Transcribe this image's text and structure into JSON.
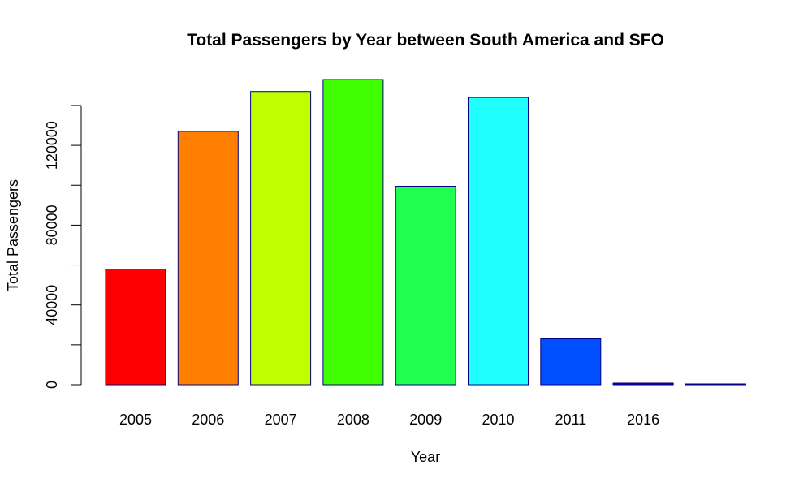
{
  "chart_data": {
    "type": "bar",
    "title": "Total  Passengers by Year between South America and SFO",
    "xlabel": "Year",
    "ylabel": "Total Passengers",
    "categories": [
      "2005",
      "2006",
      "2007",
      "2008",
      "2009",
      "2010",
      "2011",
      "2016",
      ""
    ],
    "values": [
      58000,
      127000,
      147000,
      153000,
      99500,
      144000,
      23000,
      800,
      300
    ],
    "colors": [
      "#ff0000",
      "#ff8000",
      "#bfff00",
      "#40ff00",
      "#20ff50",
      "#20ffff",
      "#0050ff",
      "#0000aa",
      "#0000aa"
    ],
    "bar_border_color": "#000080",
    "y_ticks": [
      0,
      40000,
      80000,
      120000
    ],
    "y_tick_labels": [
      "0",
      "40000",
      "80000",
      "120000"
    ],
    "ylim": [
      0,
      153000
    ],
    "grid": false,
    "legend": "none"
  }
}
